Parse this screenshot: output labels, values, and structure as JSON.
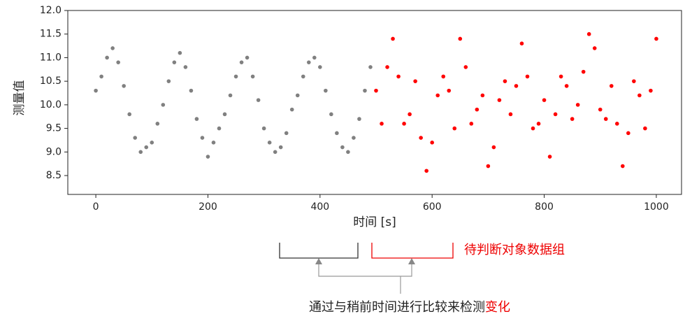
{
  "chart_data": {
    "type": "scatter",
    "xlabel": "时间 [s]",
    "ylabel": "测量值",
    "xlim": [
      -50,
      1045
    ],
    "ylim": [
      8.1,
      12.0
    ],
    "xticks": [
      0,
      200,
      400,
      600,
      800,
      1000
    ],
    "yticks": [
      8.5,
      {
        "value": 9,
        "label": "9.0"
      },
      9.5,
      {
        "value": 10,
        "label": "10.0"
      },
      10.5,
      {
        "value": 11,
        "label": "11.0"
      },
      11.5,
      {
        "value": 12,
        "label": "12.0"
      }
    ],
    "series": [
      {
        "color": "#808080",
        "x": [
          0,
          10,
          20,
          30,
          40,
          50,
          60,
          70,
          80,
          90,
          100,
          110,
          120,
          130,
          140,
          150,
          160,
          170,
          180,
          190,
          200,
          210,
          220,
          230,
          240,
          250,
          260,
          270,
          280,
          290,
          300,
          310,
          320,
          330,
          340,
          350,
          360,
          370,
          380,
          390,
          400,
          410,
          420,
          430,
          440,
          450,
          460,
          470,
          480,
          490
        ],
        "values": [
          10.3,
          10.6,
          11.0,
          11.2,
          10.9,
          10.4,
          9.8,
          9.3,
          9.0,
          9.1,
          9.2,
          9.6,
          10.0,
          10.5,
          10.9,
          11.1,
          10.8,
          10.3,
          9.7,
          9.3,
          8.9,
          9.2,
          9.5,
          9.8,
          10.2,
          10.6,
          10.9,
          11.0,
          10.6,
          10.1,
          9.5,
          9.2,
          9.0,
          9.1,
          9.4,
          9.9,
          10.2,
          10.6,
          10.9,
          11.0,
          10.8,
          10.3,
          9.8,
          9.4,
          9.1,
          9.0,
          9.3,
          9.7,
          10.3,
          10.8
        ]
      },
      {
        "color": "#ff0000",
        "x": [
          500,
          510,
          520,
          530,
          540,
          550,
          560,
          570,
          580,
          590,
          600,
          610,
          620,
          630,
          640,
          650,
          660,
          670,
          680,
          690,
          700,
          710,
          720,
          730,
          740,
          750,
          760,
          770,
          780,
          790,
          800,
          810,
          820,
          830,
          840,
          850,
          860,
          870,
          880,
          890,
          900,
          910,
          920,
          930,
          940,
          950,
          960,
          970,
          980,
          990,
          1000
        ],
        "values": [
          10.3,
          9.6,
          10.8,
          11.4,
          10.6,
          9.6,
          9.8,
          10.5,
          9.3,
          8.6,
          9.2,
          10.2,
          10.6,
          10.3,
          9.5,
          11.4,
          10.8,
          9.6,
          9.9,
          10.2,
          8.7,
          9.1,
          10.1,
          10.5,
          9.8,
          10.4,
          11.3,
          10.6,
          9.5,
          9.6,
          10.1,
          8.9,
          9.8,
          10.6,
          10.4,
          9.7,
          10.0,
          10.7,
          11.5,
          11.2,
          9.9,
          9.7,
          10.4,
          9.6,
          8.7,
          9.4,
          10.5,
          10.2,
          9.5,
          10.3,
          11.4
        ]
      }
    ],
    "annotations": {
      "target_label": "待判断对象数据组",
      "caption": "通过与稍前时间进行比较来检测",
      "caption_highlight": "变化"
    }
  }
}
